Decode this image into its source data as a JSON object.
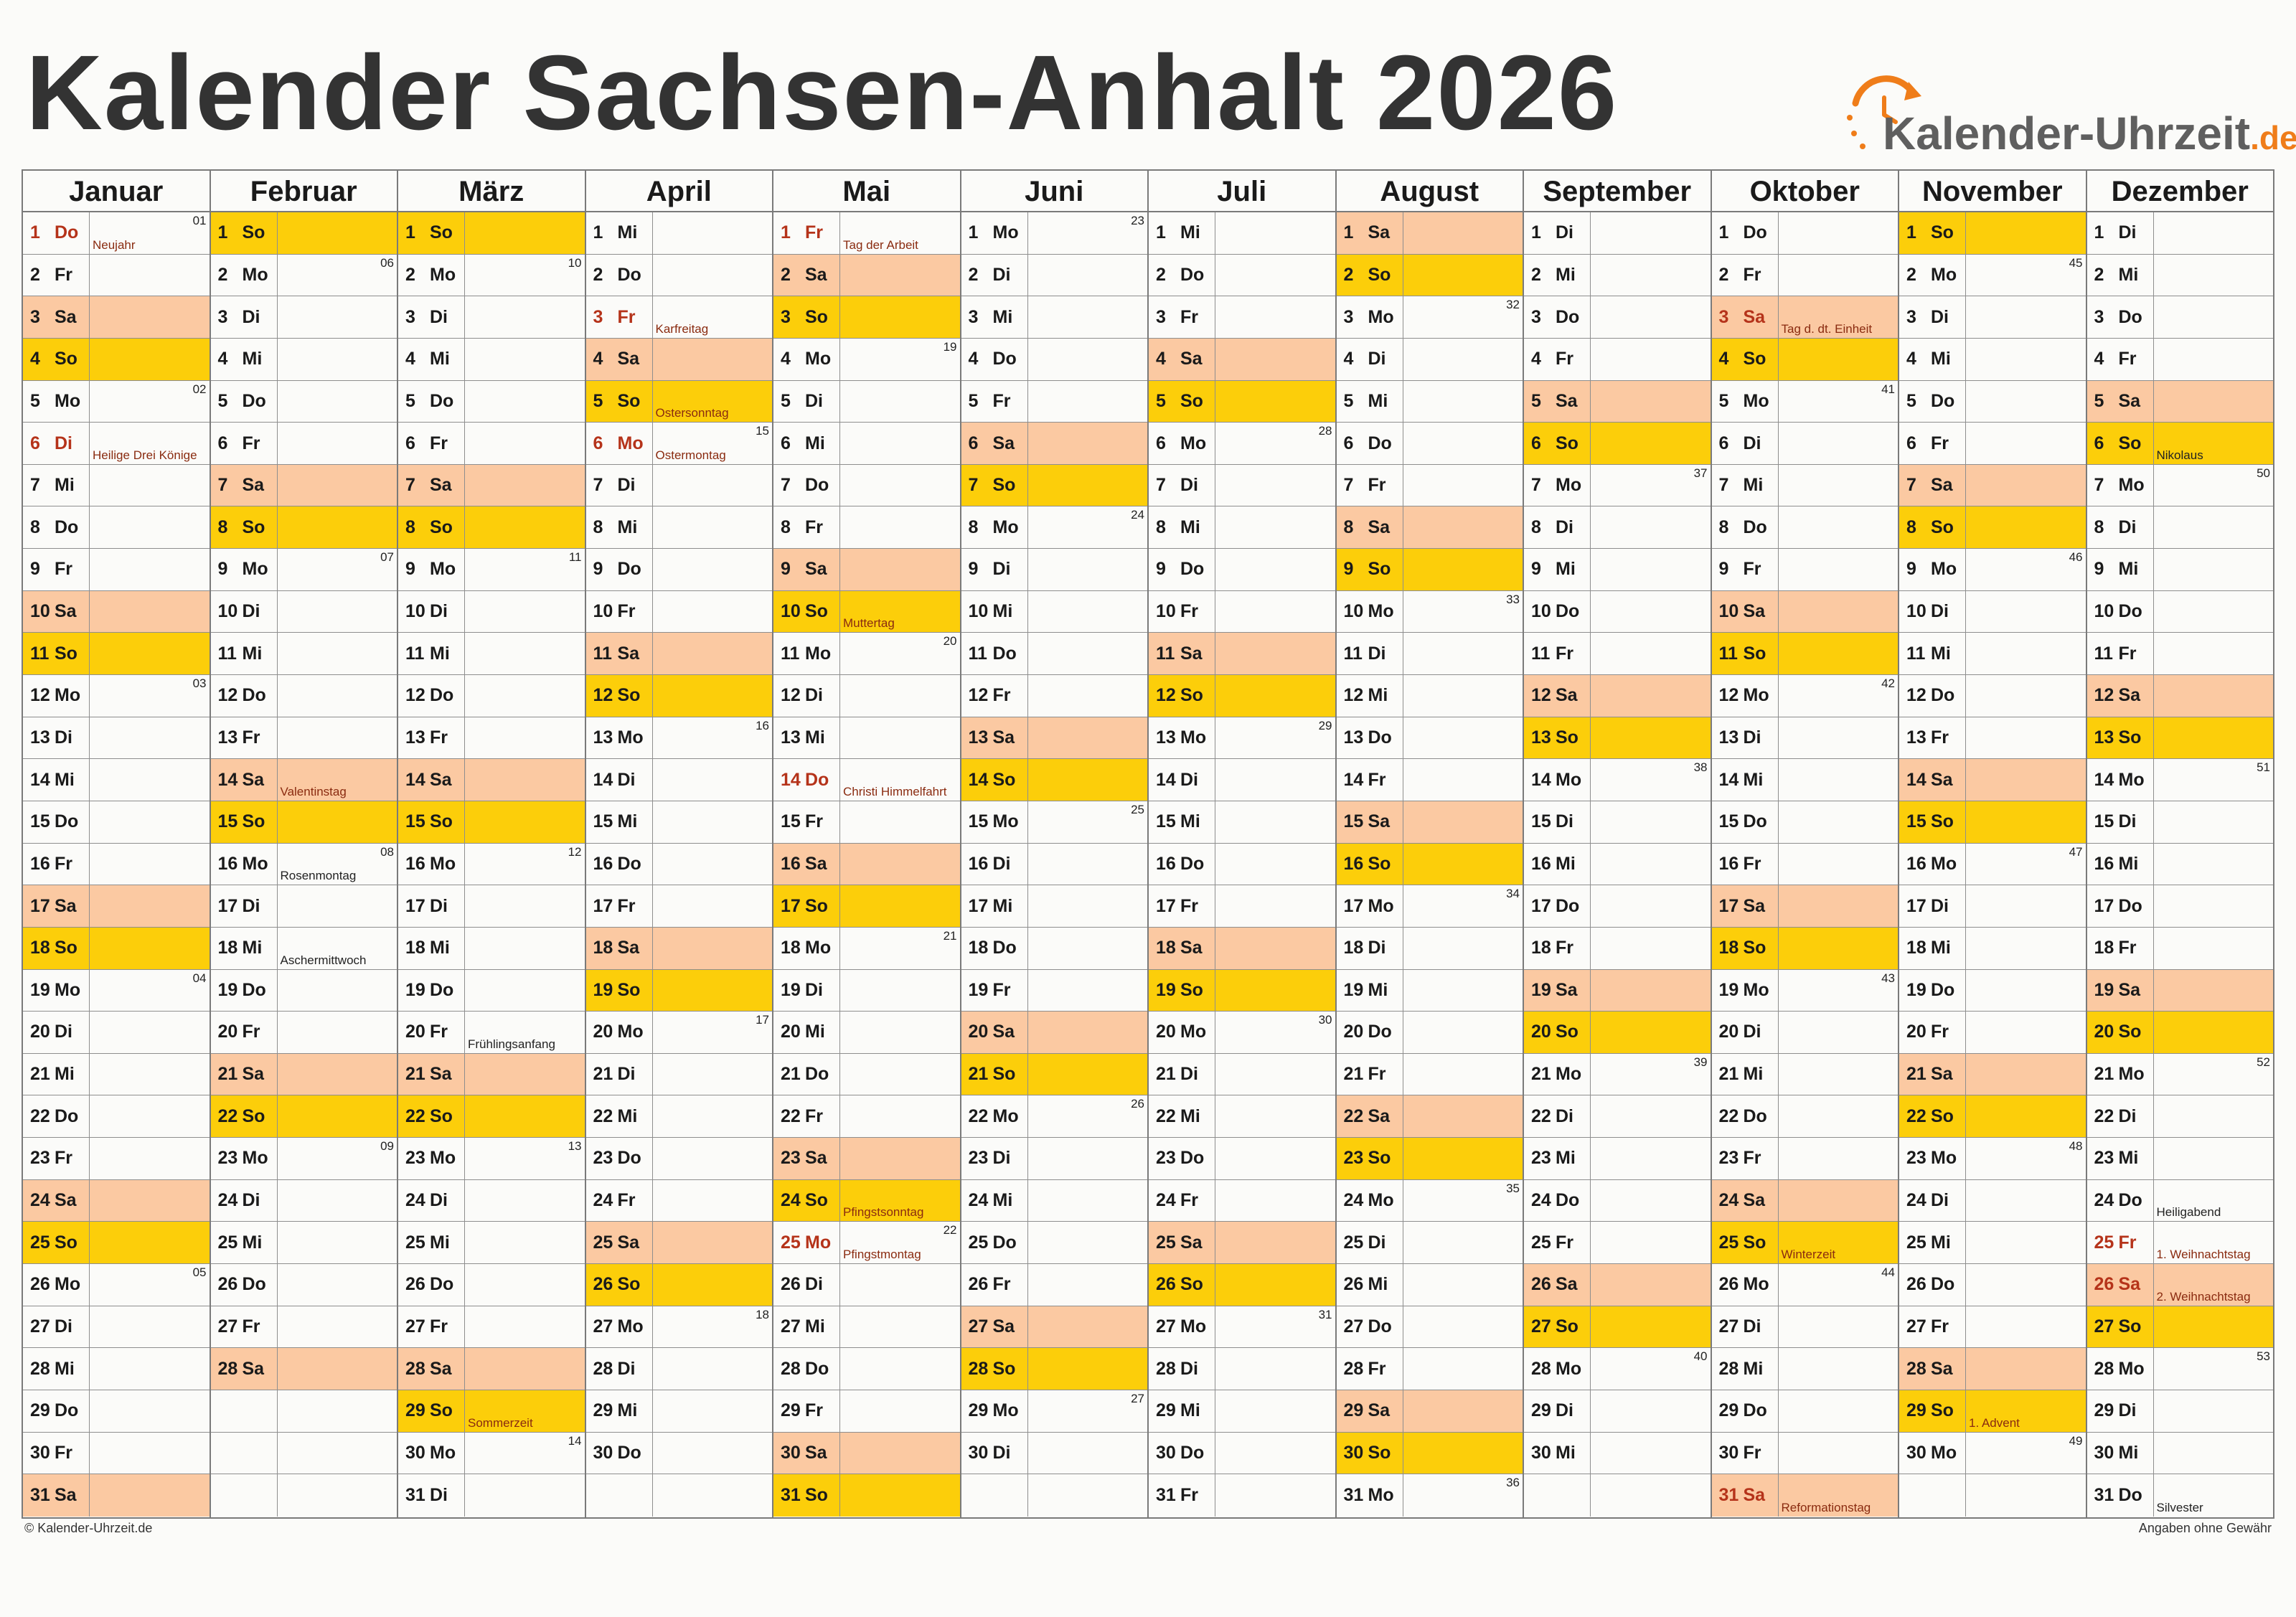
{
  "title": "Kalender Sachsen-Anhalt 2026",
  "logo": {
    "name": "Kalender-Uhrzeit",
    "tld": ".de",
    "icon": "clock-arrow-icon",
    "accent": "#ef7d1a"
  },
  "colors": {
    "saturday": "#fbc9a2",
    "sunday": "#fcce0a",
    "holiday_text": "#b5331a",
    "event_text": "#8a2b10"
  },
  "footer": {
    "left": "© Kalender-Uhrzeit.de",
    "right": "Angaben ohne Gewähr"
  },
  "months": [
    {
      "name": "Januar",
      "startWeekday": 4,
      "days": 31,
      "kw": {
        "1": "01",
        "5": "02",
        "12": "03",
        "19": "04",
        "26": "05"
      },
      "holidays": [
        1,
        6
      ],
      "events": {
        "1": "Neujahr",
        "6": "Heilige Drei Könige"
      },
      "blackEvents": []
    },
    {
      "name": "Februar",
      "startWeekday": 0,
      "days": 28,
      "kw": {
        "2": "06",
        "9": "07",
        "16": "08",
        "23": "09"
      },
      "holidays": [],
      "events": {
        "14": "Valentinstag",
        "16": "Rosenmontag",
        "18": "Aschermittwoch"
      },
      "blackEvents": [
        16,
        18
      ]
    },
    {
      "name": "März",
      "startWeekday": 0,
      "days": 31,
      "kw": {
        "2": "10",
        "9": "11",
        "16": "12",
        "23": "13",
        "30": "14"
      },
      "holidays": [],
      "events": {
        "20": "Frühlingsanfang",
        "29": "Sommerzeit"
      },
      "blackEvents": [
        20
      ]
    },
    {
      "name": "April",
      "startWeekday": 3,
      "days": 30,
      "kw": {
        "6": "15",
        "13": "16",
        "20": "17",
        "27": "18"
      },
      "holidays": [
        3,
        6
      ],
      "events": {
        "3": "Karfreitag",
        "5": "Ostersonntag",
        "6": "Ostermontag"
      },
      "blackEvents": []
    },
    {
      "name": "Mai",
      "startWeekday": 5,
      "days": 31,
      "kw": {
        "4": "19",
        "11": "20",
        "18": "21",
        "25": "22"
      },
      "holidays": [
        1,
        14,
        25
      ],
      "events": {
        "1": "Tag der Arbeit",
        "10": "Muttertag",
        "14": "Christi Himmelfahrt",
        "24": "Pfingstsonntag",
        "25": "Pfingstmontag"
      },
      "blackEvents": []
    },
    {
      "name": "Juni",
      "startWeekday": 1,
      "days": 30,
      "kw": {
        "1": "23",
        "8": "24",
        "15": "25",
        "22": "26",
        "29": "27"
      },
      "holidays": [],
      "events": {},
      "blackEvents": []
    },
    {
      "name": "Juli",
      "startWeekday": 3,
      "days": 31,
      "kw": {
        "6": "28",
        "13": "29",
        "20": "30",
        "27": "31"
      },
      "holidays": [],
      "events": {},
      "blackEvents": []
    },
    {
      "name": "August",
      "startWeekday": 6,
      "days": 31,
      "kw": {
        "3": "32",
        "10": "33",
        "17": "34",
        "24": "35",
        "31": "36"
      },
      "holidays": [],
      "events": {},
      "blackEvents": []
    },
    {
      "name": "September",
      "startWeekday": 2,
      "days": 30,
      "kw": {
        "7": "37",
        "14": "38",
        "21": "39",
        "28": "40"
      },
      "holidays": [],
      "events": {},
      "blackEvents": []
    },
    {
      "name": "Oktober",
      "startWeekday": 4,
      "days": 31,
      "kw": {
        "5": "41",
        "12": "42",
        "19": "43",
        "26": "44"
      },
      "holidays": [
        3,
        31
      ],
      "events": {
        "3": "Tag d. dt. Einheit",
        "25": "Winterzeit",
        "31": "Reformationstag"
      },
      "blackEvents": []
    },
    {
      "name": "November",
      "startWeekday": 0,
      "days": 30,
      "kw": {
        "2": "45",
        "9": "46",
        "16": "47",
        "23": "48",
        "30": "49"
      },
      "holidays": [],
      "events": {
        "29": "1. Advent"
      },
      "blackEvents": []
    },
    {
      "name": "Dezember",
      "startWeekday": 2,
      "days": 31,
      "kw": {
        "7": "50",
        "14": "51",
        "21": "52",
        "28": "53"
      },
      "holidays": [
        25,
        26
      ],
      "events": {
        "6": "Nikolaus",
        "24": "Heiligabend",
        "25": "1. Weihnachtstag",
        "26": "2. Weihnachtstag",
        "31": "Silvester"
      },
      "blackEvents": [
        6,
        24,
        31
      ]
    }
  ],
  "weekdays": [
    "So",
    "Mo",
    "Di",
    "Mi",
    "Do",
    "Fr",
    "Sa"
  ]
}
